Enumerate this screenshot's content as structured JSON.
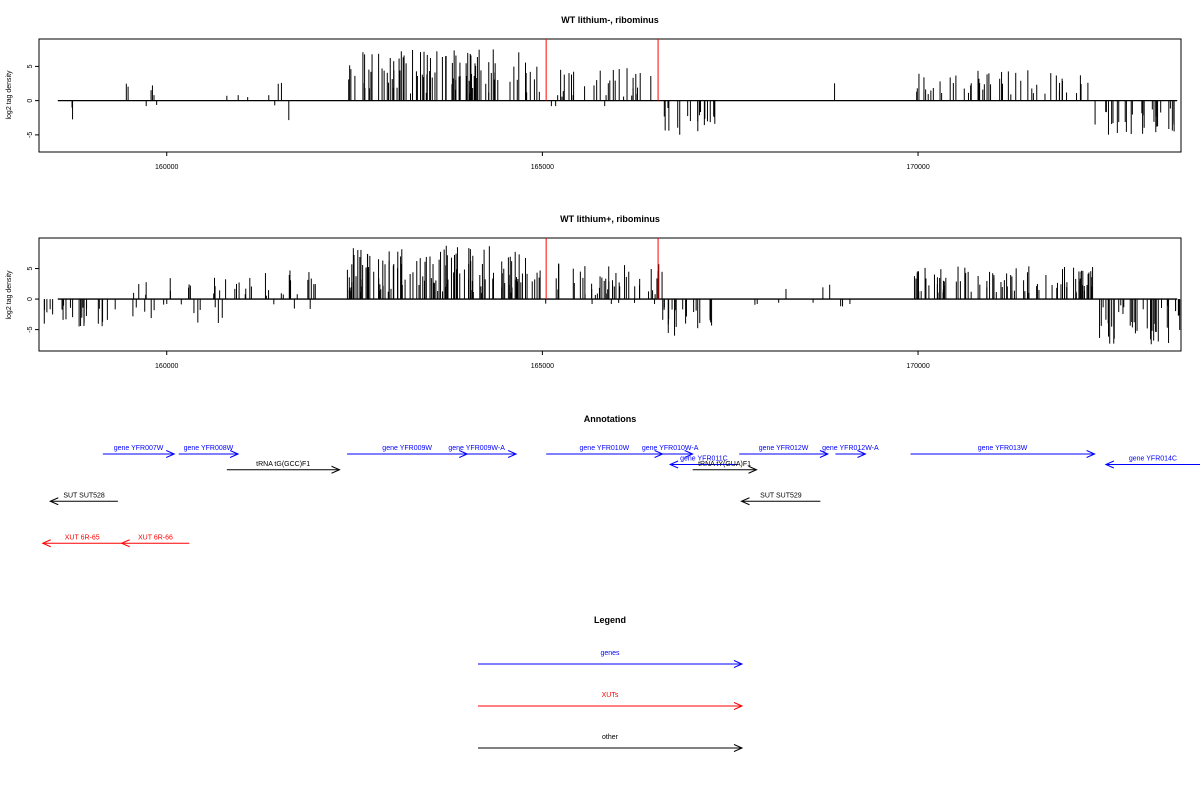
{
  "chart_data": {
    "type": "bar",
    "x_range": [
      158300,
      173500
    ],
    "x_ticks": [
      160000,
      165000,
      170000
    ],
    "x_tick_labels": [
      "160000",
      "165000",
      "170000"
    ],
    "panels": [
      {
        "title": "WT lithium-, ribominus",
        "ylabel": "log2 tag density",
        "ylim": [
          -7.5,
          9
        ],
        "y_ticks": [
          -5,
          0,
          5
        ],
        "y_tick_labels": [
          "-5",
          "0",
          "5"
        ],
        "marker_positions": [
          165050,
          166540
        ],
        "marker_heights": [
          9,
          9
        ],
        "marker_color": "#ff0000",
        "segments": [
          {
            "from": 158550,
            "to": 158850,
            "density": 0.35,
            "minv": -3.5,
            "maxv": -1.0
          },
          {
            "from": 159350,
            "to": 160000,
            "density": 0.5,
            "minv": -1.5,
            "maxv": 3.0
          },
          {
            "from": 160700,
            "to": 161600,
            "density": 0.4,
            "minv": -1.5,
            "maxv": 3.2
          },
          {
            "from": 161620,
            "to": 161650,
            "density": 1.0,
            "minv": -3.0,
            "maxv": -2.5
          },
          {
            "from": 162400,
            "to": 164850,
            "density": 2.0,
            "minv": 1.0,
            "maxv": 7.5
          },
          {
            "from": 164850,
            "to": 166600,
            "density": 1.0,
            "minv": -0.5,
            "maxv": 5.0
          },
          {
            "from": 166600,
            "to": 167300,
            "density": 1.4,
            "minv": -5.0,
            "maxv": -1.0
          },
          {
            "from": 168880,
            "to": 168900,
            "density": 1.0,
            "minv": 2.5,
            "maxv": 3.0
          },
          {
            "from": 169950,
            "to": 172350,
            "density": 1.0,
            "minv": 0.8,
            "maxv": 4.5
          },
          {
            "from": 172350,
            "to": 173450,
            "density": 1.3,
            "minv": -5.0,
            "maxv": -1.0
          }
        ]
      },
      {
        "title": "WT lithium+, ribominus",
        "ylabel": "log2 tag density",
        "ylim": [
          -8.5,
          10
        ],
        "y_ticks": [
          -5,
          0,
          5
        ],
        "y_tick_labels": [
          "-5",
          "0",
          "5"
        ],
        "marker_positions": [
          165050,
          166540
        ],
        "marker_heights": [
          10,
          10
        ],
        "marker_color": "#ff0000",
        "segments": [
          {
            "from": 158300,
            "to": 159300,
            "density": 1.2,
            "minv": -4.5,
            "maxv": -1.0
          },
          {
            "from": 159300,
            "to": 160800,
            "density": 1.0,
            "minv": -4.0,
            "maxv": 3.5
          },
          {
            "from": 160800,
            "to": 162000,
            "density": 1.0,
            "minv": -2.0,
            "maxv": 5.0
          },
          {
            "from": 162400,
            "to": 164850,
            "density": 2.5,
            "minv": 1.0,
            "maxv": 9.0
          },
          {
            "from": 164850,
            "to": 166600,
            "density": 1.6,
            "minv": -1.0,
            "maxv": 6.0
          },
          {
            "from": 166600,
            "to": 167300,
            "density": 1.5,
            "minv": -6.0,
            "maxv": -1.0
          },
          {
            "from": 167700,
            "to": 169600,
            "density": 0.25,
            "minv": -1.5,
            "maxv": 2.5
          },
          {
            "from": 169900,
            "to": 172400,
            "density": 1.8,
            "minv": 1.0,
            "maxv": 5.5
          },
          {
            "from": 172400,
            "to": 173500,
            "density": 1.8,
            "minv": -7.5,
            "maxv": -1.0
          }
        ]
      }
    ],
    "annotations": {
      "title": "Annotations",
      "features": [
        {
          "label": "gene YFR007W",
          "from": 159150,
          "to": 160100,
          "track": 0,
          "strand": "+",
          "kind": "gene"
        },
        {
          "label": "gene YFR008W",
          "from": 160160,
          "to": 160950,
          "track": 0,
          "strand": "+",
          "kind": "gene"
        },
        {
          "label": "gene YFR009W",
          "from": 162400,
          "to": 164000,
          "track": 0,
          "strand": "+",
          "kind": "gene"
        },
        {
          "label": "gene YFR009W-A",
          "from": 163600,
          "to": 164650,
          "track": 0,
          "strand": "+",
          "kind": "gene"
        },
        {
          "label": "gene YFR010W",
          "from": 165050,
          "to": 166600,
          "track": 0,
          "strand": "+",
          "kind": "gene"
        },
        {
          "label": "gene YFR010W-A",
          "from": 166400,
          "to": 167000,
          "track": 0,
          "strand": "+",
          "kind": "gene"
        },
        {
          "label": "gene YFR011C",
          "from": 166700,
          "to": 167600,
          "track": 1,
          "strand": "-",
          "kind": "gene"
        },
        {
          "label": "gene YFR012W",
          "from": 167620,
          "to": 168800,
          "track": 0,
          "strand": "+",
          "kind": "gene"
        },
        {
          "label": "gene YFR012W-A",
          "from": 168900,
          "to": 169300,
          "track": 0,
          "strand": "+",
          "kind": "gene"
        },
        {
          "label": "gene YFR013W",
          "from": 169900,
          "to": 172350,
          "track": 0,
          "strand": "+",
          "kind": "gene"
        },
        {
          "label": "gene YFR014C",
          "from": 172500,
          "to": 173900,
          "track": 1,
          "strand": "-",
          "kind": "gene"
        },
        {
          "label": "tRNA tG(GCC)F1",
          "from": 160800,
          "to": 162300,
          "track": 1.5,
          "strand": "+",
          "kind": "other"
        },
        {
          "label": "tRNA tY(GUA)F1",
          "from": 167000,
          "to": 167850,
          "track": 1.5,
          "strand": "+",
          "kind": "other"
        },
        {
          "label": "SUT SUT528",
          "from": 158450,
          "to": 159350,
          "track": 4.5,
          "strand": "-",
          "kind": "other"
        },
        {
          "label": "SUT SUT529",
          "from": 167650,
          "to": 168700,
          "track": 4.5,
          "strand": "-",
          "kind": "other"
        },
        {
          "label": "XUT 6R-65",
          "from": 158350,
          "to": 159400,
          "track": 8.5,
          "strand": "-",
          "kind": "xut"
        },
        {
          "label": "XUT 6R-66",
          "from": 159400,
          "to": 160300,
          "track": 8.5,
          "strand": "-",
          "kind": "xut"
        }
      ]
    },
    "legend": {
      "title": "Legend",
      "entries": [
        {
          "label": "genes",
          "color": "#0000ff"
        },
        {
          "label": "XUTs",
          "color": "#ff0000"
        },
        {
          "label": "other",
          "color": "#000000"
        }
      ]
    },
    "colors": {
      "gene": "#0000ff",
      "xut": "#ff0000",
      "other": "#000000",
      "bar": "#000000"
    }
  }
}
